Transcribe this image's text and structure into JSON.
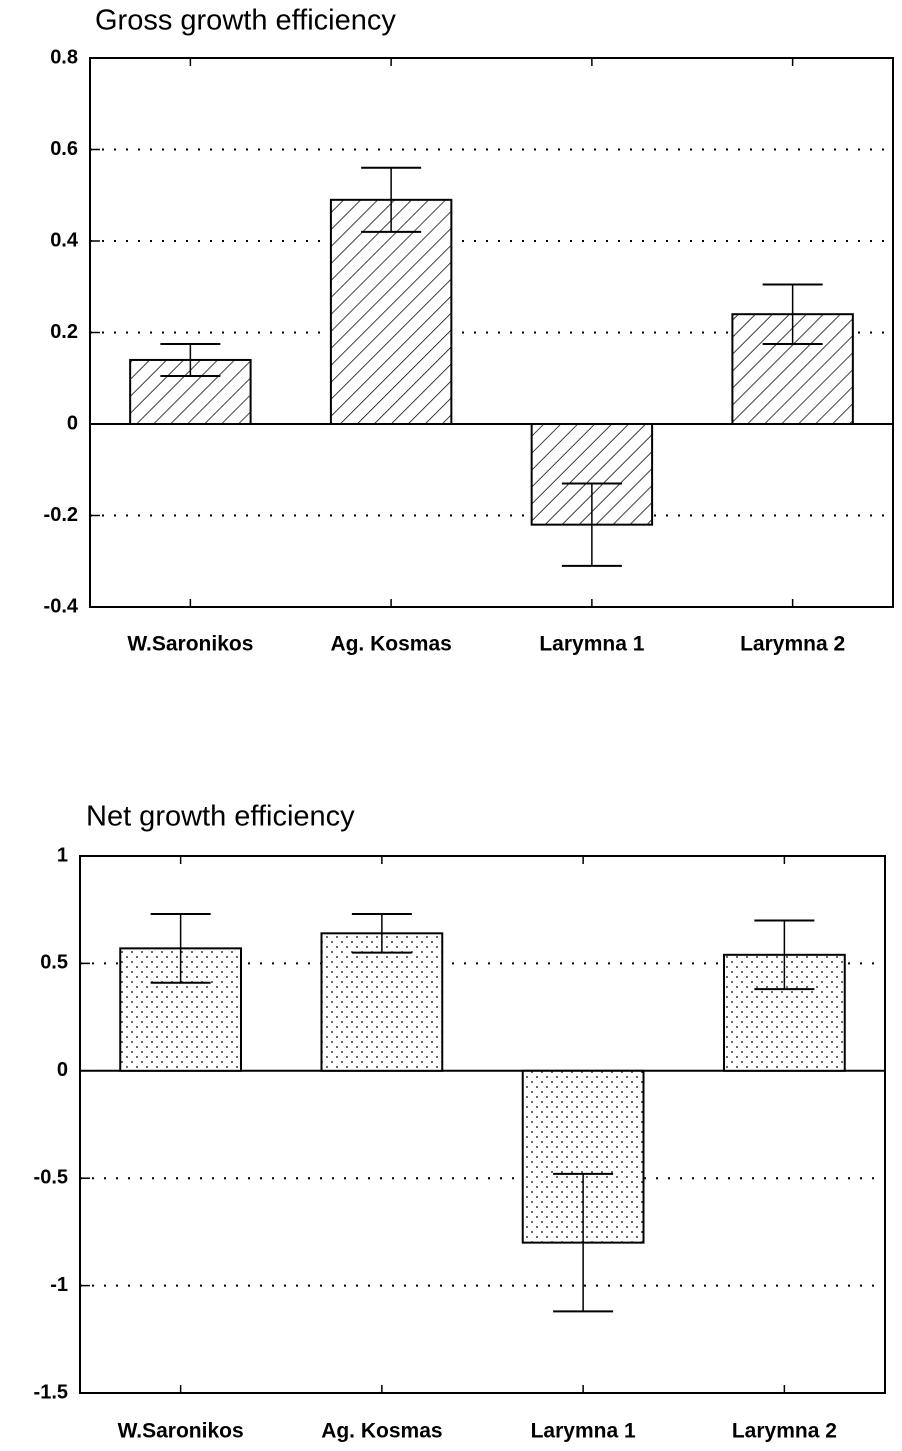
{
  "chart_data": [
    {
      "type": "bar",
      "title": "Gross growth efficiency",
      "categories": [
        "W.Saronikos",
        "Ag. Kosmas",
        "Larymna 1",
        "Larymna 2"
      ],
      "values": [
        0.14,
        0.49,
        -0.22,
        0.24
      ],
      "errors": [
        0.035,
        0.07,
        0.09,
        0.065
      ],
      "color": "#ffffff",
      "pattern": "hatch",
      "ylim": [
        -0.4,
        0.8
      ],
      "yticks": [
        {
          "value": -0.4,
          "label": "-0.4"
        },
        {
          "value": -0.2,
          "label": "-0.2"
        },
        0,
        {
          "value": 0.2,
          "label": "0.2"
        },
        {
          "value": 0.4,
          "label": "0.4"
        },
        {
          "value": 0.6,
          "label": "0.6"
        },
        {
          "value": 0.8,
          "label": "0.8"
        }
      ],
      "grid": true
    },
    {
      "type": "bar",
      "title": "Net growth efficiency",
      "categories": [
        "W.Saronikos",
        "Ag. Kosmas",
        "Larymna 1",
        "Larymna 2"
      ],
      "values": [
        0.57,
        0.64,
        -0.8,
        0.54
      ],
      "errors": [
        0.16,
        0.09,
        0.32,
        0.16
      ],
      "color": "#ffffff",
      "pattern": "dots",
      "ylim": [
        -1.5,
        1
      ],
      "yticks": [
        {
          "value": -1.5,
          "label": "-1.5"
        },
        -1,
        {
          "value": -0.5,
          "label": "-0.5"
        },
        0,
        {
          "value": 0.5,
          "label": "0.5"
        },
        1
      ],
      "grid": true
    }
  ]
}
